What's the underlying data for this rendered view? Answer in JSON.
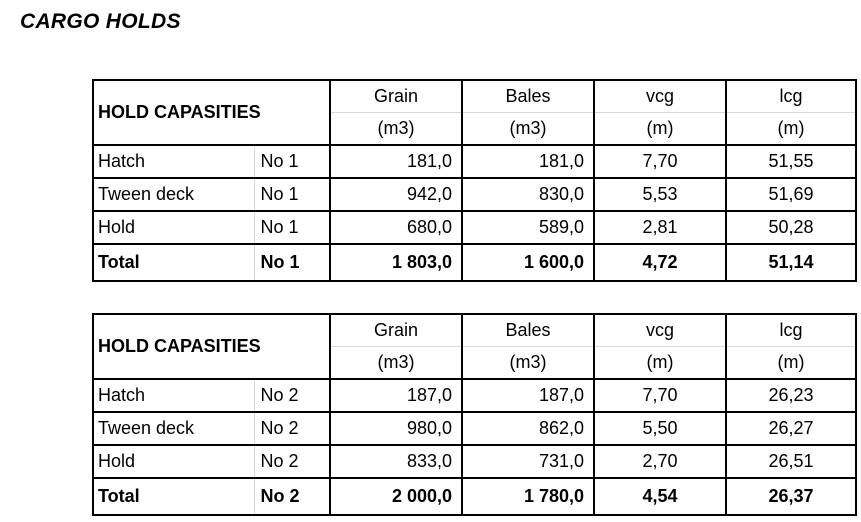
{
  "page_title": "CARGO HOLDS",
  "colors": {
    "background": "#ffffff",
    "text": "#000000",
    "table_border": "#000000",
    "thin_divider": "#d9d9d9"
  },
  "tables": [
    {
      "header": {
        "merged_label": "HOLD CAPASITIES",
        "columns": [
          {
            "name": "Grain",
            "unit": "(m3)"
          },
          {
            "name": "Bales",
            "unit": "(m3)"
          },
          {
            "name": "vcg",
            "unit": "(m)"
          },
          {
            "name": "lcg",
            "unit": "(m)"
          }
        ]
      },
      "rows": [
        {
          "label": "Hatch",
          "no": "No 1",
          "grain": "181,0",
          "bales": "181,0",
          "vcg": "7,70",
          "lcg": "51,55",
          "bold": false
        },
        {
          "label": "Tween deck",
          "no": "No 1",
          "grain": "942,0",
          "bales": "830,0",
          "vcg": "5,53",
          "lcg": "51,69",
          "bold": false
        },
        {
          "label": "Hold",
          "no": "No 1",
          "grain": "680,0",
          "bales": "589,0",
          "vcg": "2,81",
          "lcg": "50,28",
          "bold": false
        },
        {
          "label": "Total",
          "no": "No 1",
          "grain": "1 803,0",
          "bales": "1 600,0",
          "vcg": "4,72",
          "lcg": "51,14",
          "bold": true
        }
      ]
    },
    {
      "header": {
        "merged_label": "HOLD CAPASITIES",
        "columns": [
          {
            "name": "Grain",
            "unit": "(m3)"
          },
          {
            "name": "Bales",
            "unit": "(m3)"
          },
          {
            "name": "vcg",
            "unit": "(m)"
          },
          {
            "name": "lcg",
            "unit": "(m)"
          }
        ]
      },
      "rows": [
        {
          "label": "Hatch",
          "no": "No 2",
          "grain": "187,0",
          "bales": "187,0",
          "vcg": "7,70",
          "lcg": "26,23",
          "bold": false
        },
        {
          "label": "Tween deck",
          "no": "No 2",
          "grain": "980,0",
          "bales": "862,0",
          "vcg": "5,50",
          "lcg": "26,27",
          "bold": false
        },
        {
          "label": "Hold",
          "no": "No 2",
          "grain": "833,0",
          "bales": "731,0",
          "vcg": "2,70",
          "lcg": "26,51",
          "bold": false
        },
        {
          "label": "Total",
          "no": "No 2",
          "grain": "2 000,0",
          "bales": "1 780,0",
          "vcg": "4,54",
          "lcg": "26,37",
          "bold": true
        }
      ]
    }
  ]
}
